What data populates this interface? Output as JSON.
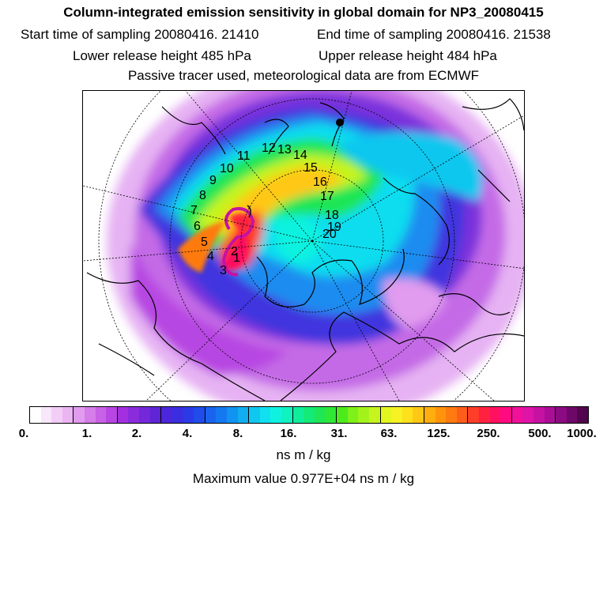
{
  "header": {
    "title": "Column-integrated emission sensitivity in global domain for NP3_20080415",
    "start_label": "Start time of sampling 20080416. 21410",
    "end_label": "End time of sampling 20080416. 21538",
    "lower_label": "Lower release height  485 hPa",
    "upper_label": "Upper release height  484 hPa",
    "tracer_note": "Passive tracer used, meteorological data are from ECMWF"
  },
  "map": {
    "trajectory_labels": [
      "1",
      "2",
      "3",
      "4",
      "5",
      "6",
      "7",
      "8",
      "9",
      "10",
      "11",
      "12",
      "13",
      "14",
      "15",
      "16",
      "17",
      "18",
      "19",
      "20"
    ]
  },
  "colorbar": {
    "colors": [
      "#ffffff",
      "#f8e6fb",
      "#f2cdf6",
      "#eab5f2",
      "#e19bef",
      "#d57de9",
      "#c761e6",
      "#b746e2",
      "#a230de",
      "#8b2cdc",
      "#7428d9",
      "#5e24d6",
      "#4b26da",
      "#3a2ee0",
      "#2a3be6",
      "#1f4ceb",
      "#1a63ef",
      "#1479f1",
      "#1193f1",
      "#10adf0",
      "#10c7ef",
      "#10e0ef",
      "#10f2e0",
      "#10f2c0",
      "#10ee9c",
      "#14ea78",
      "#1ee654",
      "#2fe836",
      "#4eeb1c",
      "#7ef01a",
      "#a4f21c",
      "#c6f41e",
      "#e4f620",
      "#f6f224",
      "#fee01c",
      "#ffc814",
      "#ffae10",
      "#ff940c",
      "#ff7a10",
      "#ff5e1a",
      "#ff3e2a",
      "#ff2240",
      "#ff1060",
      "#ff0a80",
      "#f2109a",
      "#de14a6",
      "#c612a2",
      "#aa0e96",
      "#8c0a82",
      "#6e0868",
      "#52054e"
    ],
    "tick_labels": [
      "0.",
      "1.",
      "2.",
      "4.",
      "8.",
      "16.",
      "31.",
      "63.",
      "125.",
      "250.",
      "500.",
      "1000."
    ],
    "unit": "ns m / kg"
  },
  "footer": {
    "max_value": "Maximum value  0.977E+04 ns m / kg"
  }
}
